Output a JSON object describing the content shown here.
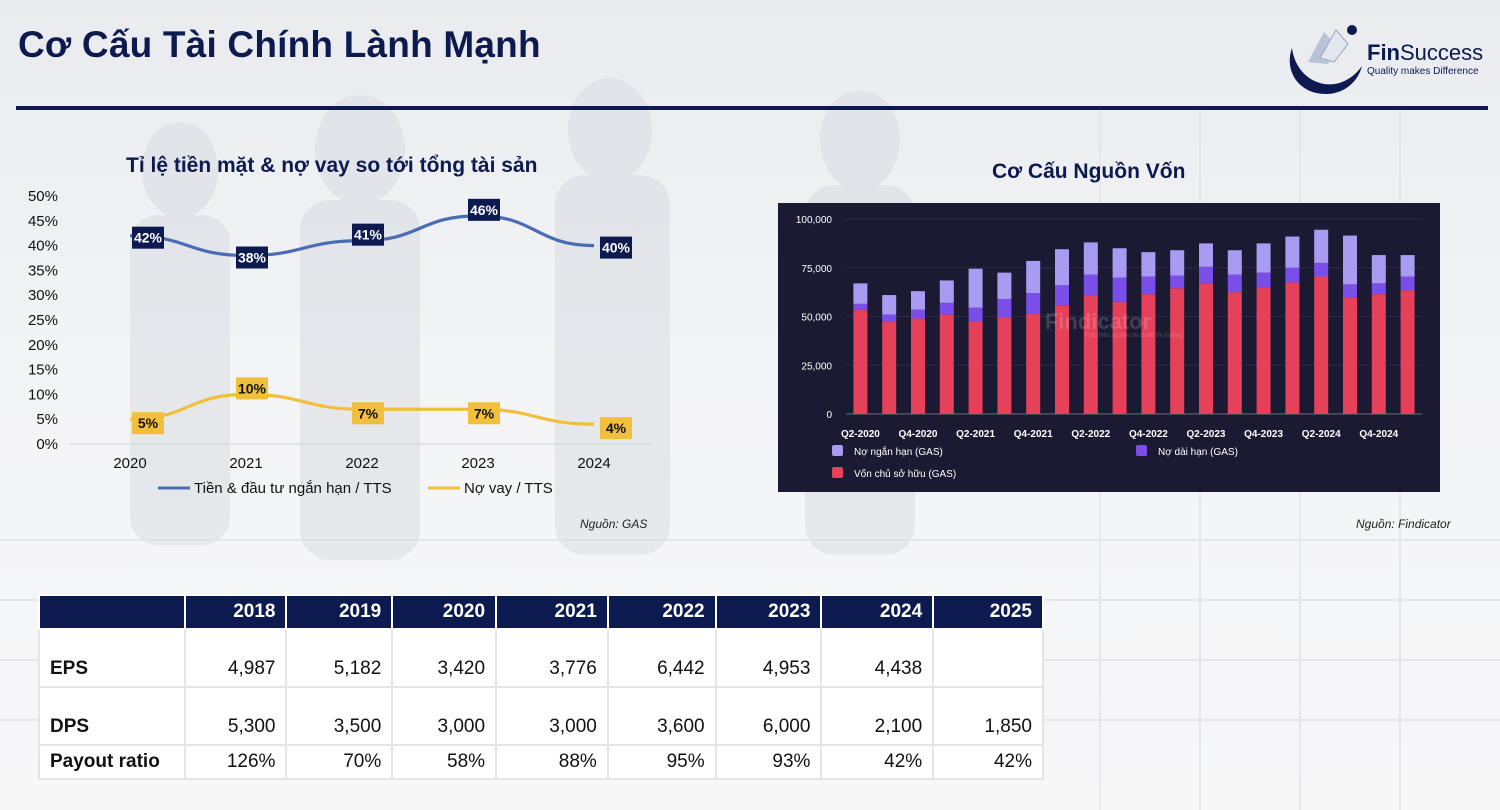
{
  "page": {
    "title": "Cơ Cấu Tài Chính Lành Mạnh"
  },
  "brand": {
    "name_bold": "Fin",
    "name_rest": "Success",
    "tagline": "Quality makes Difference"
  },
  "chart_data": [
    {
      "type": "line",
      "title": "Tỉ lệ tiền mặt & nợ vay so tới tổng tài sản",
      "categories": [
        "2020",
        "2021",
        "2022",
        "2023",
        "2024"
      ],
      "series": [
        {
          "name": "Tiền & đầu tư ngắn hạn / TTS",
          "color": "#4a6cb4",
          "label_bg": "#0c1a4f",
          "label_fg": "#ffffff",
          "values": [
            42,
            38,
            41,
            46,
            40
          ],
          "labels": [
            "42%",
            "38%",
            "41%",
            "46%",
            "40%"
          ]
        },
        {
          "name": "Nợ vay / TTS",
          "color": "#f1bf3c",
          "label_bg": "#f1bf3c",
          "label_fg": "#111111",
          "values": [
            5,
            10,
            7,
            7,
            4
          ],
          "labels": [
            "5%",
            "10%",
            "7%",
            "7%",
            "4%"
          ]
        }
      ],
      "ylim": [
        0,
        50
      ],
      "yticks": [
        "0%",
        "5%",
        "10%",
        "15%",
        "20%",
        "25%",
        "30%",
        "35%",
        "40%",
        "45%",
        "50%"
      ],
      "legend": "bottom",
      "source": "Nguồn: GAS"
    },
    {
      "type": "bar",
      "stacked": true,
      "title": "Cơ Cấu Nguồn Vốn",
      "categories": [
        "Q2-2020",
        "Q3-2020",
        "Q4-2020",
        "Q1-2021",
        "Q2-2021",
        "Q3-2021",
        "Q4-2021",
        "Q1-2022",
        "Q2-2022",
        "Q3-2022",
        "Q4-2022",
        "Q1-2023",
        "Q2-2023",
        "Q3-2023",
        "Q4-2023",
        "Q1-2024",
        "Q2-2024",
        "Q3-2024",
        "Q4-2024",
        "Q1-2025"
      ],
      "xtick_labels": [
        "Q2-2020",
        "",
        "Q4-2020",
        "",
        "Q2-2021",
        "",
        "Q4-2021",
        "",
        "Q2-2022",
        "",
        "Q4-2022",
        "",
        "Q2-2023",
        "",
        "Q4-2023",
        "",
        "Q2-2024",
        "",
        "Q4-2024",
        ""
      ],
      "series": [
        {
          "name": "Vốn chủ sở hữu (GAS)",
          "color": "#e5415a",
          "values": [
            53500,
            47500,
            49000,
            51000,
            47500,
            49500,
            51500,
            55500,
            61000,
            57500,
            61500,
            64500,
            67000,
            62500,
            65000,
            67500,
            70500,
            59500,
            61500,
            63500
          ]
        },
        {
          "name": "Nợ dài hạn (GAS)",
          "color": "#7a4ee8",
          "values": [
            3000,
            3500,
            4500,
            6000,
            7000,
            9500,
            10500,
            10500,
            10500,
            12500,
            9000,
            6500,
            8500,
            9000,
            7500,
            7500,
            7000,
            7000,
            5500,
            7000
          ]
        },
        {
          "name": "Nợ ngắn hạn (GAS)",
          "color": "#a99bf2",
          "values": [
            10500,
            10000,
            9500,
            11500,
            20000,
            13500,
            16500,
            18500,
            16500,
            15000,
            12500,
            13000,
            12000,
            12500,
            15000,
            16000,
            17000,
            25000,
            14500,
            11000
          ]
        }
      ],
      "ylim": [
        0,
        100000
      ],
      "yticks": [
        "0",
        "25,000",
        "50,000",
        "75,000",
        "100,000"
      ],
      "legend": "bottom",
      "watermark": "Findicator",
      "watermark_sub": "Thấu hiểu dữ liệu tài chính thị trường",
      "source": "Nguồn: Findicator"
    }
  ],
  "table": {
    "headers": [
      "",
      "2018",
      "2019",
      "2020",
      "2021",
      "2022",
      "2023",
      "2024",
      "2025"
    ],
    "rows": [
      {
        "label": "EPS",
        "values": [
          "4,987",
          "5,182",
          "3,420",
          "3,776",
          "6,442",
          "4,953",
          "4,438",
          ""
        ]
      },
      {
        "label": "DPS",
        "values": [
          "5,300",
          "3,500",
          "3,000",
          "3,000",
          "3,600",
          "6,000",
          "2,100",
          "1,850"
        ]
      },
      {
        "label": "Payout ratio",
        "values": [
          "126%",
          "70%",
          "58%",
          "88%",
          "95%",
          "93%",
          "42%",
          "42%"
        ]
      }
    ]
  }
}
